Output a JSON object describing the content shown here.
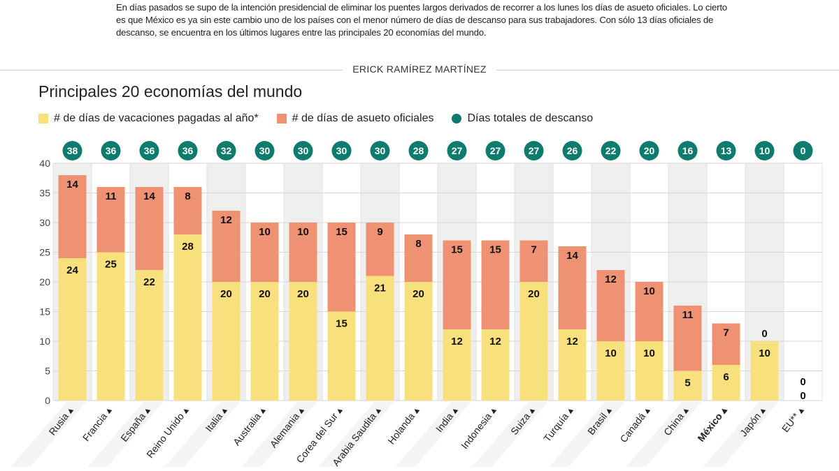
{
  "intro": "En días pasados se supo de la intención presidencial de eliminar los puentes largos derivados de recorrer a los lunes los días de asueto oficiales. Lo cierto es que México es ya sin este cambio uno de los países con el menor número de días de descanso para sus trabajadores. Con sólo 13 días oficiales de descanso, se encuentra en los últimos lugares entre las principales 20 economías del mundo.",
  "byline": "ERICK RAMÍREZ MARTÍNEZ",
  "colors": {
    "vacaciones": "#f8e07c",
    "asueto": "#ee9273",
    "total": "#0f7b6f",
    "shade": "#efefef"
  },
  "chart_data": {
    "type": "bar",
    "stacked": true,
    "title": "Principales 20 economías del mundo",
    "categories": [
      "Rusia",
      "Francia",
      "España",
      "Reino Unido",
      "Italia",
      "Australia",
      "Alemania",
      "Corea del Sur",
      "Arabia Saudita",
      "Holanda",
      "India",
      "Indonesia",
      "Suiza",
      "Turquía",
      "Brasil",
      "Canadá",
      "China",
      "México",
      "Japón",
      "EU**"
    ],
    "highlight": "México",
    "series": [
      {
        "name": "# de días de vacaciones pagadas al año*",
        "values": [
          24,
          25,
          22,
          28,
          20,
          20,
          20,
          15,
          21,
          20,
          12,
          12,
          20,
          12,
          10,
          10,
          5,
          6,
          10,
          0
        ]
      },
      {
        "name": "# de días de asueto oficiales",
        "values": [
          14,
          11,
          14,
          8,
          12,
          10,
          10,
          15,
          9,
          8,
          15,
          15,
          7,
          14,
          12,
          10,
          11,
          7,
          0,
          0
        ]
      }
    ],
    "totals_name": "Días totales de descanso",
    "totals": [
      38,
      36,
      36,
      36,
      32,
      30,
      30,
      30,
      30,
      28,
      27,
      27,
      27,
      26,
      22,
      20,
      16,
      13,
      10,
      0
    ],
    "yticks": [
      0,
      5,
      10,
      15,
      20,
      25,
      30,
      35,
      40
    ],
    "ylim": [
      0,
      40
    ],
    "grid": true,
    "legend": "top-left"
  }
}
